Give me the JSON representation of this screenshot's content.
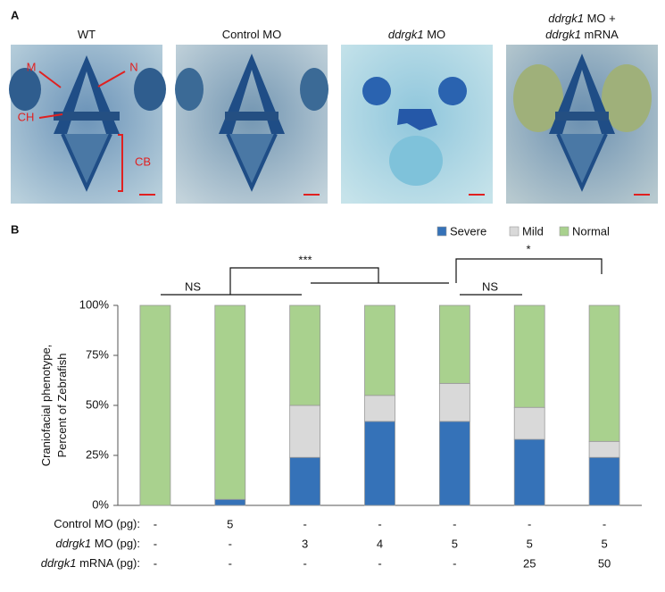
{
  "panel_a": {
    "label": "A",
    "images": [
      {
        "title": [
          [
            {
              "text": "WT"
            }
          ]
        ]
      },
      {
        "title": [
          [
            {
              "text": "Control MO"
            }
          ]
        ]
      },
      {
        "title": [
          [
            {
              "text": "ddrgk1",
              "italic": true
            },
            {
              "text": " MO"
            }
          ]
        ]
      },
      {
        "title": [
          [
            {
              "text": "ddrgk1",
              "italic": true
            },
            {
              "text": " MO +"
            }
          ],
          [
            {
              "text": "ddrgk1",
              "italic": true
            },
            {
              "text": " mRNA"
            }
          ]
        ]
      }
    ],
    "annotations": [
      "M",
      "N",
      "CH",
      "CB"
    ]
  },
  "chart_data": {
    "type": "stacked_bar",
    "panel_label": "B",
    "ylabel": [
      "Craniofacial phenotype,",
      "Percent of Zebrafish"
    ],
    "categories": [
      null,
      null,
      null,
      null,
      null,
      null,
      null
    ],
    "series": [
      {
        "name": "Severe",
        "color": "#3572b8",
        "values": [
          0,
          3,
          24,
          42,
          42,
          33,
          24
        ]
      },
      {
        "name": "Mild",
        "color": "#d9d9d9",
        "values": [
          0,
          0,
          26,
          13,
          19,
          16,
          8
        ]
      },
      {
        "name": "Normal",
        "color": "#a9d18e",
        "values": [
          100,
          97,
          50,
          45,
          39,
          51,
          68
        ]
      }
    ],
    "ylim": [
      0,
      100
    ],
    "yticks": [
      {
        "value": 0,
        "label": "0%"
      },
      {
        "value": 25,
        "label": "25%"
      },
      {
        "value": 50,
        "label": "50%"
      },
      {
        "value": 75,
        "label": "75%"
      },
      {
        "value": 100,
        "label": "100%"
      }
    ],
    "legend": "top-right",
    "significance": [
      "NS",
      "***",
      "NS",
      "*"
    ],
    "conditions": [
      {
        "label": [
          {
            "text": "Control MO (pg):"
          }
        ],
        "values": [
          "-",
          "5",
          "-",
          "-",
          "-",
          "-",
          "-"
        ]
      },
      {
        "label": [
          {
            "text": "ddrgk1",
            "italic": true
          },
          {
            "text": " MO (pg):"
          }
        ],
        "values": [
          "-",
          "-",
          "3",
          "4",
          "5",
          "5",
          "5"
        ]
      },
      {
        "label": [
          {
            "text": "ddrgk1",
            "italic": true
          },
          {
            "text": " mRNA (pg):"
          }
        ],
        "values": [
          "-",
          "-",
          "-",
          "-",
          "-",
          "25",
          "50"
        ]
      }
    ]
  }
}
